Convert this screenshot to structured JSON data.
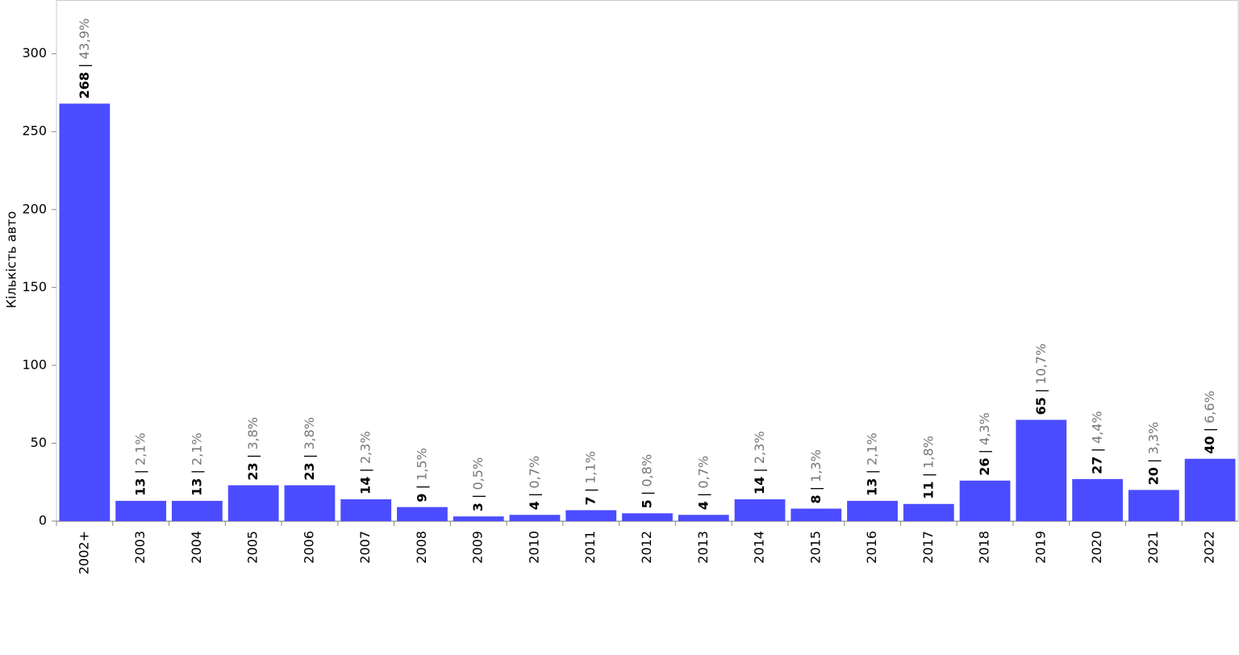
{
  "chart_data": {
    "type": "bar",
    "y_label": "Кількість авто",
    "categories": [
      "2002+",
      "2003",
      "2004",
      "2005",
      "2006",
      "2007",
      "2008",
      "2009",
      "2010",
      "2011",
      "2012",
      "2013",
      "2014",
      "2015",
      "2016",
      "2017",
      "2018",
      "2019",
      "2020",
      "2021",
      "2022"
    ],
    "values": [
      268,
      13,
      13,
      23,
      23,
      14,
      9,
      3,
      4,
      7,
      5,
      4,
      14,
      8,
      13,
      11,
      26,
      65,
      27,
      20,
      40
    ],
    "value_separator": "|",
    "share_labels": [
      "43,9%",
      "2,1%",
      "2,1%",
      "3,8%",
      "3,8%",
      "2,3%",
      "1,5%",
      "0,5%",
      "0,7%",
      "1,1%",
      "0,8%",
      "0,7%",
      "2,3%",
      "1,3%",
      "2,1%",
      "1,8%",
      "4,3%",
      "10,7%",
      "4,4%",
      "3,3%",
      "6,6%"
    ],
    "color": "#4b4cff",
    "ylim": [
      0,
      334
    ],
    "yticks": [
      0,
      50,
      100,
      150,
      200,
      250,
      300
    ]
  }
}
